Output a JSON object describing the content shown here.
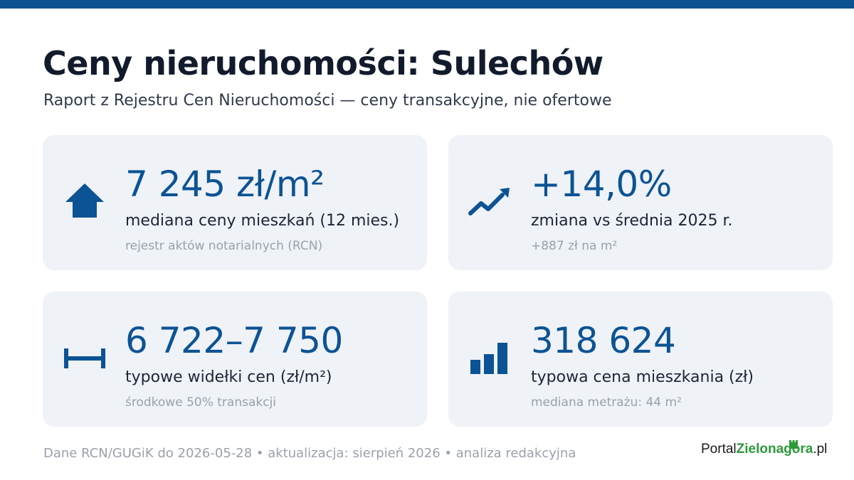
{
  "header": {
    "title": "Ceny nieruchomości: Sulechów",
    "subtitle": "Raport z Rejestru Cen Nieruchomości — ceny transakcyjne, nie ofertowe"
  },
  "cards": [
    {
      "icon": "house-arrow-icon",
      "value": "7 245 zł/m²",
      "label": "mediana ceny mieszkań (12 mies.)",
      "note": "rejestr aktów notarialnych (RCN)"
    },
    {
      "icon": "trend-up-icon",
      "value": "+14,0%",
      "label": "zmiana vs średnia 2025 r.",
      "note": "+887 zł na m²"
    },
    {
      "icon": "range-icon",
      "value": "6 722–7 750",
      "label": "typowe widełki cen (zł/m²)",
      "note": "środkowe 50% transakcji"
    },
    {
      "icon": "bar-chart-icon",
      "value": "318 624",
      "label": "typowa cena mieszkania (zł)",
      "note": "mediana metrażu: 44 m²"
    }
  ],
  "footer": {
    "text": "Dane RCN/GUGiK do 2026-05-28 • aktualizacja: sierpień 2026 • analiza redakcyjna"
  },
  "logo": {
    "part1": "Portal",
    "part2": "Zielonagora",
    "part3": ".pl"
  },
  "colors": {
    "accent": "#0b5394",
    "top_bar": "#0d5291",
    "card_bg": "#eff2f7",
    "logo_green": "#2e9a3c"
  }
}
